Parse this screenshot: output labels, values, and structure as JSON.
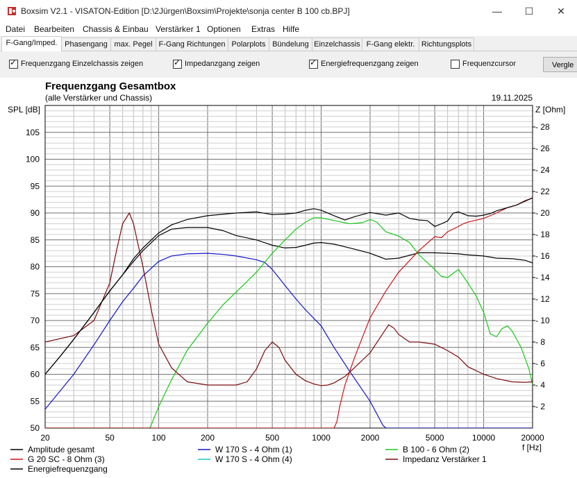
{
  "window": {
    "title": "Boxsim V2.1 - VISATON-Edition [D:\\2Jürgen\\Boxsim\\Projekte\\sonja center B 100 cb.BPJ]",
    "icon": "boxsim-app-icon",
    "controls": {
      "minimize": "—",
      "maximize": "☐",
      "close": "✕"
    }
  },
  "menu": [
    "Datei",
    "Bearbeiten",
    "Chassis & Einbau",
    "Verstärker 1",
    "Optionen",
    "Extras",
    "Hilfe"
  ],
  "tabs": [
    {
      "label": "F-Gang/Imped.",
      "active": true
    },
    {
      "label": "Phasengang",
      "active": false
    },
    {
      "label": "max. Pegel",
      "active": false
    },
    {
      "label": "F-Gang Richtungen",
      "active": false
    },
    {
      "label": "Polarplots",
      "active": false
    },
    {
      "label": "Bündelung",
      "active": false
    },
    {
      "label": "Einzelchassis",
      "active": false
    },
    {
      "label": "F-Gang elektr.",
      "active": false
    },
    {
      "label": "Richtungsplots",
      "active": false
    }
  ],
  "options": [
    {
      "label": "Frequenzgang Einzelchassis zeigen",
      "checked": true
    },
    {
      "label": "Impedanzgang zeigen",
      "checked": true
    },
    {
      "label": "Energiefrequenzgang zeigen",
      "checked": true
    },
    {
      "label": "Frequenzcursor",
      "checked": false
    }
  ],
  "compare_button": "Vergle",
  "chart_data": {
    "type": "line",
    "title": "Frequenzgang Gesamtbox",
    "subtitle": "(alle Verstärker und Chassis)",
    "date": "19.11.2025",
    "xlabel": "f [Hz]",
    "ylabel": "SPL [dB]",
    "y2label": "Z [Ohm]",
    "xscale": "log",
    "xlim": [
      20,
      20000
    ],
    "ylim": [
      50,
      110
    ],
    "y2lim": [
      0,
      30
    ],
    "grid": true,
    "x_ticks": [
      20,
      50,
      100,
      200,
      500,
      1000,
      2000,
      5000,
      10000,
      20000
    ],
    "x_tick_labels": [
      "20",
      "50",
      "100",
      "200",
      "500",
      "1000",
      "2000",
      "5000",
      "10000",
      "20000"
    ],
    "y_ticks": [
      50,
      55,
      60,
      65,
      70,
      75,
      80,
      85,
      90,
      95,
      100,
      105
    ],
    "y2_ticks": [
      2,
      4,
      6,
      8,
      10,
      12,
      14,
      16,
      18,
      20,
      22,
      24,
      26,
      28
    ],
    "series": [
      {
        "name": "Amplitude gesamt",
        "axis": "left",
        "color": "#000000",
        "points": [
          [
            20,
            60
          ],
          [
            25,
            63.5
          ],
          [
            30,
            66.5
          ],
          [
            40,
            71.5
          ],
          [
            50,
            75.5
          ],
          [
            60,
            78.5
          ],
          [
            70,
            81
          ],
          [
            80,
            83
          ],
          [
            100,
            85.8
          ],
          [
            120,
            87
          ],
          [
            150,
            87.3
          ],
          [
            200,
            87.3
          ],
          [
            250,
            86.7
          ],
          [
            300,
            85.8
          ],
          [
            400,
            85
          ],
          [
            500,
            84
          ],
          [
            600,
            83.5
          ],
          [
            700,
            83.6
          ],
          [
            800,
            84
          ],
          [
            900,
            84.4
          ],
          [
            1000,
            84.5
          ],
          [
            1200,
            84.2
          ],
          [
            1500,
            83.5
          ],
          [
            2000,
            82.5
          ],
          [
            2500,
            81.4
          ],
          [
            3000,
            81.6
          ],
          [
            4000,
            82.6
          ],
          [
            5000,
            82.6
          ],
          [
            6000,
            82.5
          ],
          [
            7000,
            82.4
          ],
          [
            8000,
            82.2
          ],
          [
            10000,
            82
          ],
          [
            12000,
            81.6
          ],
          [
            15000,
            81.5
          ],
          [
            18000,
            81.2
          ],
          [
            20000,
            80.7
          ]
        ]
      },
      {
        "name": "W 170 S - 4 Ohm (1)",
        "axis": "left",
        "color": "#1414c8",
        "points": [
          [
            20,
            53.5
          ],
          [
            30,
            60
          ],
          [
            40,
            65.5
          ],
          [
            50,
            70
          ],
          [
            60,
            73.5
          ],
          [
            70,
            76
          ],
          [
            80,
            78.3
          ],
          [
            100,
            81
          ],
          [
            120,
            82
          ],
          [
            150,
            82.4
          ],
          [
            200,
            82.5
          ],
          [
            250,
            82.3
          ],
          [
            300,
            82
          ],
          [
            400,
            81.3
          ],
          [
            450,
            80.8
          ],
          [
            500,
            79.5
          ],
          [
            600,
            76.5
          ],
          [
            700,
            74
          ],
          [
            800,
            72
          ],
          [
            1000,
            69
          ],
          [
            1200,
            65
          ],
          [
            1500,
            60.5
          ],
          [
            2000,
            55
          ],
          [
            2400,
            50.5
          ],
          [
            2500,
            50
          ],
          [
            20000,
            50
          ]
        ]
      },
      {
        "name": "B 100 - 6 Ohm (2)",
        "axis": "left",
        "color": "#18c818",
        "points": [
          [
            20,
            50
          ],
          [
            88,
            50
          ],
          [
            90,
            50.6
          ],
          [
            100,
            54
          ],
          [
            120,
            59
          ],
          [
            150,
            64.5
          ],
          [
            200,
            69.5
          ],
          [
            250,
            73
          ],
          [
            300,
            75.3
          ],
          [
            400,
            79
          ],
          [
            500,
            82.5
          ],
          [
            600,
            85
          ],
          [
            700,
            87
          ],
          [
            800,
            88.3
          ],
          [
            900,
            89.1
          ],
          [
            1000,
            89.1
          ],
          [
            1200,
            88.6
          ],
          [
            1500,
            88
          ],
          [
            1800,
            88.2
          ],
          [
            2000,
            88.8
          ],
          [
            2200,
            88.3
          ],
          [
            2500,
            86.5
          ],
          [
            3000,
            85.7
          ],
          [
            3500,
            84.5
          ],
          [
            4000,
            82.2
          ],
          [
            5000,
            79.5
          ],
          [
            5500,
            78.2
          ],
          [
            6000,
            78
          ],
          [
            7000,
            79.5
          ],
          [
            8000,
            77
          ],
          [
            9000,
            74.5
          ],
          [
            10000,
            71.5
          ],
          [
            11000,
            67.5
          ],
          [
            12000,
            67
          ],
          [
            13000,
            68.5
          ],
          [
            14000,
            69
          ],
          [
            15000,
            68
          ],
          [
            17000,
            65
          ],
          [
            19000,
            61
          ],
          [
            20000,
            58
          ]
        ]
      },
      {
        "name": "G 20 SC - 8 Ohm (3)",
        "axis": "left",
        "color": "#c81414",
        "points": [
          [
            20,
            50
          ],
          [
            1200,
            50
          ],
          [
            1250,
            51.2
          ],
          [
            1300,
            54
          ],
          [
            1400,
            58
          ],
          [
            1600,
            63
          ],
          [
            1800,
            67
          ],
          [
            2000,
            70.5
          ],
          [
            2500,
            75.5
          ],
          [
            3000,
            79
          ],
          [
            4000,
            83
          ],
          [
            5000,
            85.6
          ],
          [
            5500,
            85.4
          ],
          [
            6000,
            86.5
          ],
          [
            7000,
            87.5
          ],
          [
            7500,
            88
          ],
          [
            8000,
            88.3
          ],
          [
            10000,
            89
          ],
          [
            12000,
            90
          ],
          [
            14000,
            91
          ],
          [
            16000,
            91.5
          ],
          [
            18000,
            92.3
          ],
          [
            20000,
            92.8
          ]
        ]
      },
      {
        "name": "W 170 S - 4 Ohm (4)",
        "axis": "left",
        "color": "#18c8c8",
        "points": []
      },
      {
        "name": "Impedanz Verstärker 1",
        "axis": "right",
        "color": "#7a0a0a",
        "points": [
          [
            20,
            8
          ],
          [
            30,
            8.6
          ],
          [
            40,
            10
          ],
          [
            50,
            13.5
          ],
          [
            55,
            16.5
          ],
          [
            60,
            19
          ],
          [
            66,
            20
          ],
          [
            70,
            19
          ],
          [
            80,
            15
          ],
          [
            90,
            11
          ],
          [
            100,
            7.8
          ],
          [
            120,
            5.6
          ],
          [
            150,
            4.3
          ],
          [
            200,
            4
          ],
          [
            300,
            4
          ],
          [
            350,
            4.3
          ],
          [
            400,
            5.5
          ],
          [
            450,
            7.2
          ],
          [
            500,
            8
          ],
          [
            550,
            7.5
          ],
          [
            600,
            6.3
          ],
          [
            700,
            5
          ],
          [
            800,
            4.4
          ],
          [
            900,
            4.1
          ],
          [
            1000,
            3.95
          ],
          [
            1100,
            4
          ],
          [
            1200,
            4.2
          ],
          [
            1400,
            4.8
          ],
          [
            1600,
            5.6
          ],
          [
            2000,
            7
          ],
          [
            2400,
            8.8
          ],
          [
            2600,
            9.6
          ],
          [
            2800,
            9.3
          ],
          [
            3000,
            8.7
          ],
          [
            3500,
            8
          ],
          [
            4000,
            8
          ],
          [
            5000,
            7.8
          ],
          [
            6000,
            7.2
          ],
          [
            7000,
            6.6
          ],
          [
            8000,
            5.7
          ],
          [
            10000,
            5
          ],
          [
            12000,
            4.6
          ],
          [
            15000,
            4.3
          ],
          [
            18000,
            4.25
          ],
          [
            20000,
            4.3
          ]
        ]
      },
      {
        "name": "Energiefrequenzgang",
        "axis": "left",
        "color": "#000000",
        "points": [
          [
            20,
            60
          ],
          [
            25,
            63.5
          ],
          [
            30,
            66.5
          ],
          [
            40,
            71.5
          ],
          [
            50,
            75.5
          ],
          [
            60,
            78.5
          ],
          [
            70,
            81.5
          ],
          [
            80,
            83.5
          ],
          [
            90,
            85
          ],
          [
            100,
            86.3
          ],
          [
            120,
            87.8
          ],
          [
            150,
            88.8
          ],
          [
            200,
            89.5
          ],
          [
            300,
            90
          ],
          [
            400,
            90.2
          ],
          [
            500,
            89.7
          ],
          [
            600,
            89.8
          ],
          [
            700,
            90
          ],
          [
            800,
            90.5
          ],
          [
            900,
            90.8
          ],
          [
            1000,
            90.5
          ],
          [
            1200,
            89.5
          ],
          [
            1400,
            88.7
          ],
          [
            1600,
            89.3
          ],
          [
            2000,
            90.1
          ],
          [
            2500,
            89.6
          ],
          [
            3000,
            90
          ],
          [
            3500,
            89
          ],
          [
            4000,
            88.7
          ],
          [
            4500,
            88.6
          ],
          [
            5000,
            87.5
          ],
          [
            5500,
            88
          ],
          [
            6000,
            88.5
          ],
          [
            6500,
            90
          ],
          [
            7000,
            90.2
          ],
          [
            8000,
            89.5
          ],
          [
            9000,
            89.4
          ],
          [
            10000,
            89.6
          ],
          [
            11000,
            89.9
          ],
          [
            12000,
            90.4
          ],
          [
            14000,
            91
          ],
          [
            16000,
            91.5
          ],
          [
            18000,
            92.2
          ],
          [
            20000,
            92.8
          ]
        ]
      }
    ],
    "legend": [
      {
        "label": "Amplitude gesamt",
        "color": "#000000"
      },
      {
        "label": "W 170 S - 4 Ohm (1)",
        "color": "#1414c8"
      },
      {
        "label": "B 100 - 6 Ohm (2)",
        "color": "#18c818"
      },
      {
        "label": "G 20 SC - 8 Ohm (3)",
        "color": "#c81414"
      },
      {
        "label": "W 170 S - 4 Ohm (4)",
        "color": "#18c8c8"
      },
      {
        "label": "Impedanz Verstärker 1",
        "color": "#7a0a0a"
      },
      {
        "label": "Energiefrequenzgang",
        "color": "#000000"
      }
    ]
  }
}
